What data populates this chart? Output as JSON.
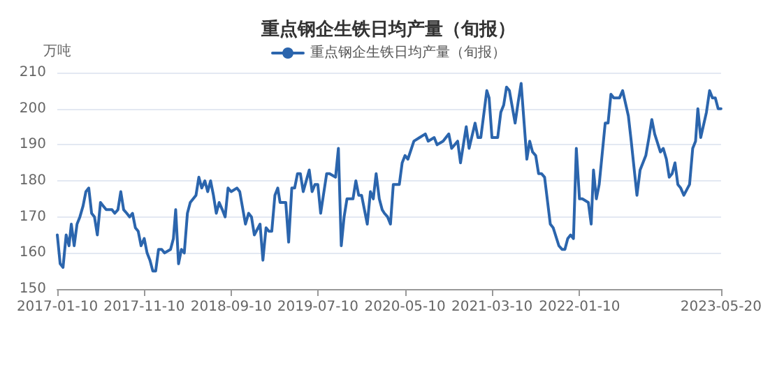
{
  "chart_data": {
    "type": "line",
    "title": "重点钢企生铁日均产量（旬报）",
    "ylabel": "万吨",
    "x": [
      "2017-01-10",
      "2017-01-20",
      "2017-01-30",
      "2017-02-10",
      "2017-02-20",
      "2017-02-28",
      "2017-03-10",
      "2017-03-20",
      "2017-03-30",
      "2017-04-10",
      "2017-04-20",
      "2017-04-30",
      "2017-05-10",
      "2017-05-20",
      "2017-05-30",
      "2017-06-10",
      "2017-06-20",
      "2017-06-30",
      "2017-07-20",
      "2017-07-30",
      "2017-08-10",
      "2017-08-20",
      "2017-08-30",
      "2017-09-10",
      "2017-09-20",
      "2017-09-30",
      "2017-10-10",
      "2017-10-20",
      "2017-10-30",
      "2017-11-10",
      "2017-11-20",
      "2017-11-30",
      "2017-12-10",
      "2017-12-20",
      "2017-12-30",
      "2018-01-10",
      "2018-01-20",
      "2018-02-10",
      "2018-02-20",
      "2018-02-28",
      "2018-03-10",
      "2018-03-20",
      "2018-03-30",
      "2018-04-10",
      "2018-04-20",
      "2018-05-10",
      "2018-05-20",
      "2018-05-30",
      "2018-06-10",
      "2018-06-20",
      "2018-06-30",
      "2018-07-10",
      "2018-07-20",
      "2018-07-30",
      "2018-08-10",
      "2018-08-20",
      "2018-08-30",
      "2018-09-10",
      "2018-09-30",
      "2018-10-10",
      "2018-10-30",
      "2018-11-10",
      "2018-11-20",
      "2018-11-30",
      "2018-12-20",
      "2018-12-30",
      "2019-01-10",
      "2019-01-20",
      "2019-01-30",
      "2019-02-10",
      "2019-02-20",
      "2019-02-28",
      "2019-03-20",
      "2019-03-30",
      "2019-04-10",
      "2019-04-20",
      "2019-04-30",
      "2019-05-10",
      "2019-05-20",
      "2019-06-10",
      "2019-06-20",
      "2019-06-30",
      "2019-07-10",
      "2019-07-20",
      "2019-08-10",
      "2019-08-20",
      "2019-09-10",
      "2019-09-20",
      "2019-09-30",
      "2019-10-10",
      "2019-10-20",
      "2019-11-10",
      "2019-11-20",
      "2019-11-30",
      "2019-12-10",
      "2019-12-30",
      "2020-01-10",
      "2020-01-20",
      "2020-01-30",
      "2020-02-10",
      "2020-02-20",
      "2020-02-28",
      "2020-03-10",
      "2020-03-20",
      "2020-03-30",
      "2020-04-20",
      "2020-04-30",
      "2020-05-10",
      "2020-05-20",
      "2020-06-10",
      "2020-06-30",
      "2020-07-20",
      "2020-07-30",
      "2020-08-20",
      "2020-08-30",
      "2020-09-20",
      "2020-10-10",
      "2020-10-20",
      "2020-11-10",
      "2020-11-20",
      "2020-12-10",
      "2020-12-20",
      "2021-01-10",
      "2021-01-20",
      "2021-01-30",
      "2021-02-20",
      "2021-02-28",
      "2021-03-10",
      "2021-03-30",
      "2021-04-10",
      "2021-04-20",
      "2021-04-30",
      "2021-05-10",
      "2021-05-30",
      "2021-06-10",
      "2021-06-20",
      "2021-07-10",
      "2021-07-20",
      "2021-07-30",
      "2021-08-10",
      "2021-08-20",
      "2021-08-30",
      "2021-09-10",
      "2021-09-30",
      "2021-10-10",
      "2021-10-30",
      "2021-11-10",
      "2021-11-20",
      "2021-11-30",
      "2021-12-10",
      "2021-12-20",
      "2021-12-30",
      "2022-01-10",
      "2022-01-20",
      "2022-02-10",
      "2022-02-20",
      "2022-02-28",
      "2022-03-10",
      "2022-03-20",
      "2022-04-10",
      "2022-04-20",
      "2022-04-30",
      "2022-05-10",
      "2022-05-30",
      "2022-06-10",
      "2022-06-30",
      "2022-07-10",
      "2022-07-30",
      "2022-08-10",
      "2022-08-30",
      "2022-09-10",
      "2022-09-20",
      "2022-09-30",
      "2022-10-20",
      "2022-10-30",
      "2022-11-10",
      "2022-11-20",
      "2022-11-30",
      "2022-12-10",
      "2022-12-20",
      "2022-12-30",
      "2023-01-10",
      "2023-01-30",
      "2023-02-10",
      "2023-02-20",
      "2023-02-28",
      "2023-03-10",
      "2023-03-30",
      "2023-04-10",
      "2023-04-20",
      "2023-04-30",
      "2023-05-10",
      "2023-05-20"
    ],
    "series": [
      {
        "name": "重点钢企生铁日均产量（旬报）",
        "color": "#2b65ad",
        "values": [
          165,
          157,
          156,
          165,
          162,
          168,
          162,
          168,
          170,
          173,
          177,
          178,
          171,
          170,
          165,
          174,
          173,
          172,
          172,
          171,
          172,
          177,
          172,
          171,
          170,
          171,
          167,
          166,
          162,
          164,
          160,
          158,
          155,
          155,
          161,
          161,
          160,
          161,
          164,
          172,
          157,
          161,
          160,
          171,
          174,
          176,
          181,
          178,
          180,
          177,
          180,
          176,
          171,
          174,
          172,
          170,
          178,
          177,
          178,
          177,
          168,
          171,
          170,
          165,
          168,
          158,
          167,
          166,
          166,
          176,
          178,
          174,
          174,
          163,
          178,
          178,
          182,
          182,
          177,
          183,
          177,
          179,
          179,
          171,
          182,
          182,
          181,
          189,
          162,
          170,
          175,
          175,
          180,
          176,
          176,
          168,
          177,
          175,
          182,
          175,
          172,
          171,
          170,
          168,
          179,
          179,
          185,
          187,
          186,
          191,
          192,
          193,
          191,
          192,
          190,
          191,
          193,
          189,
          191,
          185,
          195,
          189,
          196,
          192,
          192,
          205,
          203,
          192,
          192,
          199,
          201,
          206,
          205,
          196,
          202,
          207,
          186,
          191,
          188,
          187,
          182,
          182,
          181,
          168,
          167,
          162,
          161,
          161,
          164,
          165,
          164,
          189,
          175,
          175,
          174,
          168,
          183,
          175,
          179,
          196,
          196,
          204,
          203,
          203,
          205,
          198,
          191,
          176,
          183,
          187,
          192,
          197,
          193,
          188,
          189,
          186,
          181,
          182,
          185,
          179,
          178,
          176,
          179,
          189,
          191,
          200,
          192,
          199,
          205,
          203,
          203,
          200,
          200
        ]
      }
    ],
    "ylim": [
      150,
      210
    ],
    "yticks": [
      150,
      160,
      170,
      180,
      190,
      200,
      210
    ],
    "xlim": [
      "2017-01-10",
      "2023-05-20"
    ],
    "xticks": [
      "2017-01-10",
      "2017-11-10",
      "2018-09-10",
      "2019-07-10",
      "2020-05-10",
      "2021-03-10",
      "2022-01-10",
      "2023-05-20"
    ],
    "grid": "y",
    "legend": "top",
    "marker": "none",
    "line_style": "solid"
  }
}
